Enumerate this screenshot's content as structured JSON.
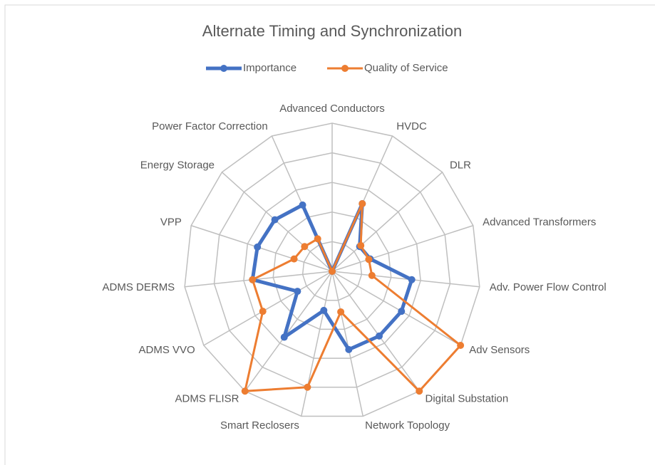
{
  "chart_data": {
    "type": "radar",
    "title": "Alternate Timing and Synchronization",
    "categories": [
      "Advanced Conductors",
      "HVDC",
      "DLR",
      "Advanced Transformers",
      "Adv. Power Flow Control",
      "Adv Sensors",
      "Digital Substation",
      "Network Topology",
      "Smart Reclosers",
      "ADMS FLISR",
      "ADMS VVO",
      "ADMS DERMS",
      "VPP",
      "Energy Storage",
      "Power Factor Correction"
    ],
    "series": [
      {
        "name": "Importance",
        "color": "#4472c4",
        "values": [
          0,
          2.5,
          1.25,
          1.35,
          2.7,
          2.7,
          2.7,
          2.7,
          1.35,
          2.75,
          1.35,
          2.7,
          2.65,
          2.6,
          2.45
        ]
      },
      {
        "name": "Quality of Service",
        "color": "#ed7d31",
        "values": [
          0,
          2.5,
          1.3,
          1.3,
          1.35,
          5,
          5,
          1.4,
          4,
          5,
          2.7,
          2.7,
          1.35,
          1.25,
          1.2
        ]
      }
    ],
    "rlim": [
      0,
      5
    ],
    "rticks": [
      0,
      1,
      2,
      3,
      4,
      5
    ],
    "grid": true,
    "legend": "top"
  }
}
